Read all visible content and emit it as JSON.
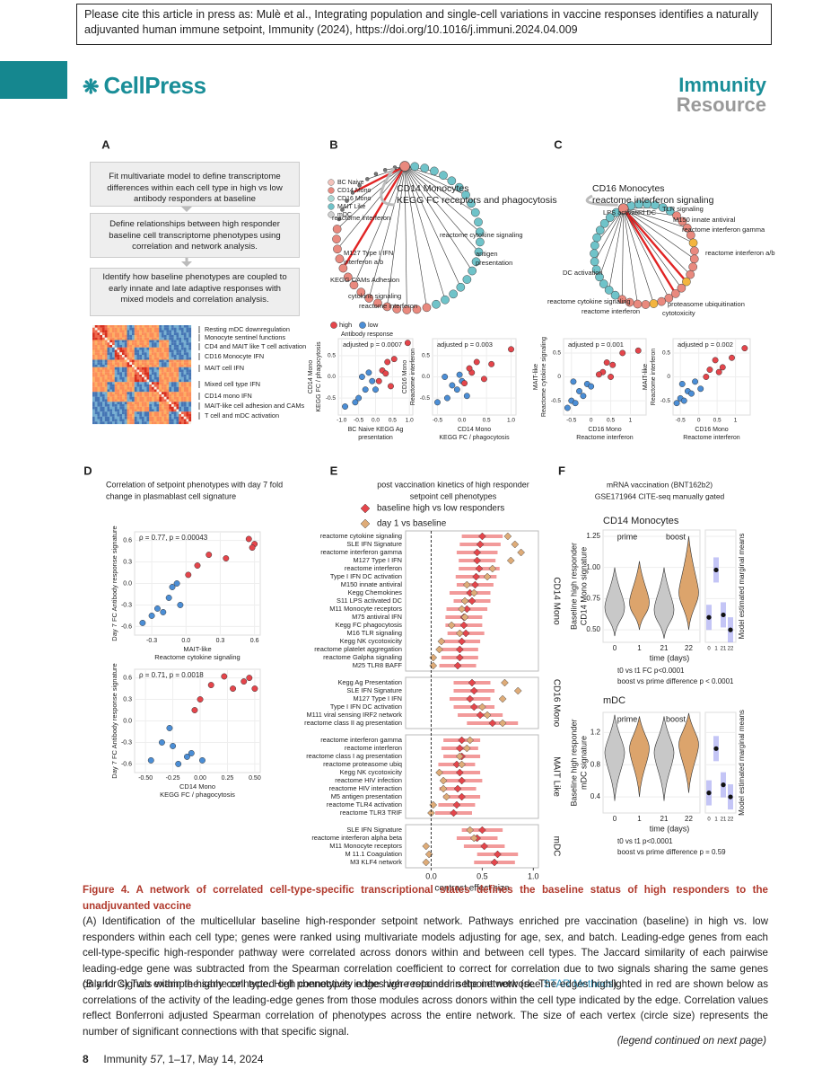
{
  "header": {
    "citation": "Please cite this article in press as: Mulè et al., Integrating population and single-cell variations in vaccine responses identifies a naturally adjuvanted human immune setpoint, Immunity (2024), https://doi.org/10.1016/j.immuni.2024.04.009",
    "publisher": "CellPress",
    "journal": "Immunity",
    "article_type": "Resource"
  },
  "panel_a": {
    "letter": "A",
    "steps": [
      "Fit multivariate model to define transcriptome differences within each cell type in high vs low antibody responders at baseline",
      "Define relationships between high responder baseline cell transcriptome phenotypes using correlation and network analysis.",
      "Identify how baseline phenotypes are coupled to early innate and late adaptive responses with mixed models and correlation analysis."
    ],
    "modules": [
      "Resting mDC downregulation",
      "Monocyte sentinel functions",
      "CD4 and MAIT like T cell activation",
      "CD16 Monocyte IFN",
      "MAIT cell IFN",
      "Mixed cell type IFN",
      "CD14 mono IFN",
      "MAIT-like cell adhesion and CAMs",
      "T cell and mDC activation"
    ]
  },
  "panel_b": {
    "letter": "B",
    "legend": [
      {
        "label": "BC Naive",
        "color": "#f3c3bb"
      },
      {
        "label": "CD14 Mono",
        "color": "#e9897e"
      },
      {
        "label": "CD16 Mono",
        "color": "#a9d8d4"
      },
      {
        "label": "MAIT Like",
        "color": "#6fc3c9"
      },
      {
        "label": "mDC",
        "color": "#cfcfcf"
      }
    ],
    "title": [
      "CD14 Monocytes",
      "KEGG FC receptors and phagocytosis"
    ],
    "labels": [
      "reactome interferon",
      "M127 Type I IFN",
      "interferon a/b",
      "KEGG CAMs Adhesion",
      "cytokine signaling",
      "reactome interferon",
      "reactome cytokine signaling",
      "antigen",
      "presentation"
    ],
    "response_legend": {
      "items": [
        {
          "label": "high",
          "color": "#e5454b"
        },
        {
          "label": "low",
          "color": "#4b8ed6"
        }
      ],
      "title": "Antibody response"
    },
    "scatters": [
      {
        "annotation": "adjusted p = 0.0007",
        "xlabel": [
          "BC Naive KEGG Ag",
          "presentation"
        ],
        "ylabel": [
          "CD14 Mono",
          "KEGG FC / phagocytosis"
        ],
        "xlim": [
          -1.1,
          1.1
        ],
        "ylim": [
          -0.9,
          0.9
        ],
        "xticks": [
          {
            "value": -1,
            "label": "-1.0"
          },
          -0.5,
          {
            "value": 0,
            "label": "0.0"
          },
          0.5,
          {
            "value": 1,
            "label": "1.0"
          }
        ],
        "yticks": [
          -0.5,
          {
            "value": 0,
            "label": "0.0"
          },
          0.5
        ],
        "high": {
          "x": [
            0.95,
            0.35,
            0.55,
            0.2,
            0.3,
            0.1,
            0.45
          ],
          "y": [
            0.8,
            0.35,
            0.42,
            0.15,
            0.08,
            -0.1,
            -0.22
          ]
        },
        "low": {
          "x": [
            -0.9,
            -0.5,
            -0.3,
            -0.1,
            -0.4,
            -0.2,
            0.0,
            -0.6
          ],
          "y": [
            -0.7,
            -0.5,
            -0.3,
            -0.1,
            0.0,
            0.1,
            -0.3,
            -0.6
          ]
        }
      },
      {
        "annotation": "adjusted p = 0.003",
        "xlabel": [
          "CD14 Mono",
          "KEGG FC / phagocytosis"
        ],
        "ylabel": [
          "CD16 Mono",
          "Reactome interferon"
        ],
        "xlim": [
          -0.6,
          1.1
        ],
        "ylim": [
          -0.9,
          0.9
        ],
        "xticks": [
          -0.5,
          {
            "value": 0,
            "label": "0.0"
          },
          0.5,
          {
            "value": 1,
            "label": "1.0"
          }
        ],
        "yticks": [
          -0.5,
          {
            "value": 0,
            "label": "0.0"
          },
          0.5
        ],
        "high": {
          "x": [
            1.0,
            0.6,
            0.3,
            0.2,
            0.45,
            0.15,
            0.05
          ],
          "y": [
            0.65,
            0.3,
            0.35,
            0.1,
            -0.05,
            0.2,
            -0.15
          ]
        },
        "low": {
          "x": [
            -0.5,
            -0.3,
            -0.2,
            -0.1,
            0.0,
            -0.35,
            0.1,
            -0.05
          ],
          "y": [
            -0.6,
            -0.5,
            -0.2,
            -0.3,
            -0.1,
            0.0,
            -0.45,
            0.05
          ]
        }
      }
    ]
  },
  "panel_c": {
    "letter": "C",
    "title": [
      "CD16 Monocytes",
      "reactome interferon signaling"
    ],
    "labels": [
      "LPS activated DC",
      "TLR signaling",
      "M150 innate antiviral",
      "reactome interferon gamma",
      "reactome interferon a/b",
      "DC activation",
      "reactome cytokine signaling",
      "reactome interferon",
      "proteasome ubiquitination",
      "cytotoxicity"
    ],
    "scatters": [
      {
        "annotation": "adjusted p = 0.001",
        "xlabel": [
          "CD16 Mono",
          "Reactome interferon"
        ],
        "ylabel": [
          "MAIT-like",
          "Reactome cytokine signaling"
        ],
        "xlim": [
          -0.7,
          1.4
        ],
        "ylim": [
          -0.8,
          0.8
        ],
        "xticks": [
          -0.5,
          0,
          0.5,
          1
        ],
        "yticks": [
          -0.5,
          0,
          0.5
        ],
        "high": {
          "x": [
            1.2,
            0.8,
            0.55,
            0.4,
            0.3,
            0.2,
            0.5
          ],
          "y": [
            0.55,
            0.5,
            0.25,
            0.3,
            0.1,
            0.05,
            0.0
          ]
        },
        "low": {
          "x": [
            -0.6,
            -0.5,
            -0.4,
            -0.3,
            -0.2,
            -0.1,
            0.0,
            -0.45
          ],
          "y": [
            -0.65,
            -0.5,
            -0.55,
            -0.3,
            -0.4,
            -0.15,
            -0.2,
            -0.1
          ]
        }
      },
      {
        "annotation": "adjusted p = 0.002",
        "xlabel": [
          "CD16 Mono",
          "Reactome interferon"
        ],
        "ylabel": [
          "MAIT-like",
          "Reactome interferon"
        ],
        "xlim": [
          -0.7,
          1.4
        ],
        "ylim": [
          -0.8,
          0.8
        ],
        "xticks": [
          -0.5,
          0,
          0.5,
          1
        ],
        "yticks": [
          -0.5,
          0,
          0.5
        ],
        "high": {
          "x": [
            1.25,
            0.9,
            0.65,
            0.45,
            0.3,
            0.55,
            0.2
          ],
          "y": [
            0.6,
            0.4,
            0.2,
            0.35,
            0.15,
            0.1,
            0.0
          ]
        },
        "low": {
          "x": [
            -0.6,
            -0.5,
            -0.4,
            -0.3,
            -0.2,
            -0.1,
            0.05,
            -0.45
          ],
          "y": [
            -0.55,
            -0.45,
            -0.5,
            -0.3,
            -0.35,
            -0.1,
            -0.25,
            -0.15
          ]
        }
      }
    ]
  },
  "panel_d": {
    "letter": "D",
    "title": [
      "Correlation of setpoint phenotypes with day 7 fold",
      "change in plasmablast cell signature"
    ],
    "ylabel": "Day 7 FC Antibody response signature",
    "scatters": [
      {
        "annotation": "ρ = 0.77, p = 0.00043",
        "xlabel": [
          "MAIT-like",
          "Reactome cytokine signaling"
        ],
        "xlim": [
          -0.45,
          0.65
        ],
        "ylim": [
          -0.72,
          0.72
        ],
        "xticks": [
          -0.3,
          {
            "value": 0,
            "label": "0.0"
          },
          0.3,
          0.6
        ],
        "yticks": [
          -0.6,
          -0.3,
          {
            "value": 0,
            "label": "0.0"
          },
          0.3,
          0.6
        ],
        "high": {
          "x": [
            0.55,
            0.6,
            0.58,
            0.35,
            0.2,
            0.1,
            0.02
          ],
          "y": [
            0.62,
            0.55,
            0.5,
            0.35,
            0.4,
            0.25,
            0.12
          ]
        },
        "low": {
          "x": [
            -0.38,
            -0.3,
            -0.25,
            -0.2,
            -0.15,
            -0.12,
            -0.08,
            -0.05
          ],
          "y": [
            -0.55,
            -0.45,
            -0.35,
            -0.4,
            -0.2,
            -0.05,
            0.0,
            -0.3
          ]
        }
      },
      {
        "annotation": "ρ = 0.71, p = 0.0018",
        "xlabel": [
          "CD14 Mono",
          "KEGG FC / phagocytosis"
        ],
        "xlim": [
          -0.6,
          0.55
        ],
        "ylim": [
          -0.72,
          0.72
        ],
        "xticks": [
          {
            "value": -0.5,
            "label": "-0.50"
          },
          -0.25,
          {
            "value": 0,
            "label": "0.00"
          },
          0.25,
          {
            "value": 0.5,
            "label": "0.50"
          }
        ],
        "yticks": [
          -0.6,
          -0.3,
          {
            "value": 0,
            "label": "0.0"
          },
          0.3,
          0.6
        ],
        "high": {
          "x": [
            0.45,
            0.5,
            0.4,
            0.22,
            0.1,
            0.0,
            -0.05,
            0.3
          ],
          "y": [
            0.6,
            0.45,
            0.55,
            0.62,
            0.5,
            0.3,
            0.15,
            0.45
          ]
        },
        "low": {
          "x": [
            -0.45,
            -0.35,
            -0.28,
            -0.25,
            -0.2,
            -0.12,
            -0.08,
            0.02
          ],
          "y": [
            -0.55,
            -0.3,
            -0.1,
            -0.35,
            -0.6,
            -0.5,
            -0.45,
            -0.55
          ]
        }
      }
    ]
  },
  "panel_e": {
    "letter": "E",
    "title": [
      "post vaccination kinetics of high responder",
      "setpoint cell phenotypes"
    ],
    "xlabel": "contrast effect size",
    "xlim": [
      -0.25,
      1.05
    ],
    "xticks": [
      {
        "value": 0,
        "label": "0.0"
      },
      0.5,
      {
        "value": 1,
        "label": "1.0"
      }
    ],
    "series": [
      {
        "name": "baseline high vs low responders",
        "color": "#e5454b"
      },
      {
        "name": "day 1 vs baseline",
        "color": "#dfac78"
      }
    ],
    "groups": [
      {
        "name": "CD14 Mono",
        "rows": [
          "reactome cytokine signaling",
          "SLE IFN Signature",
          "reactome interferon gamma",
          "M127 Type I IFN",
          "reactome interferon",
          "Type I IFN DC activation",
          "M150 innate antiviral",
          "Kegg Chemokines",
          "S11 LPS activated DC",
          "M11 Monocyte receptors",
          "M75 antiviral IFN",
          "Kegg FC phagocytosis",
          "M16 TLR signaling",
          "Kegg NK cycotoxicity",
          "reactome platelet aggregation",
          "reactome Galpha signaling",
          "M25 TLR8 BAFF"
        ],
        "baseline": [
          0.5,
          0.48,
          0.45,
          0.45,
          0.47,
          0.44,
          0.43,
          0.38,
          0.4,
          0.35,
          0.32,
          0.32,
          0.34,
          0.3,
          0.28,
          0.28,
          0.26
        ],
        "err": [
          0.2,
          0.2,
          0.2,
          0.18,
          0.2,
          0.2,
          0.18,
          0.2,
          0.18,
          0.2,
          0.18,
          0.18,
          0.18,
          0.18,
          0.18,
          0.18,
          0.18
        ],
        "day1": [
          0.75,
          0.82,
          0.88,
          0.78,
          0.6,
          0.55,
          0.35,
          0.42,
          0.33,
          0.3,
          0.33,
          0.2,
          0.28,
          0.1,
          0.08,
          0.02,
          0.02
        ]
      },
      {
        "name": "CD16 Mono",
        "rows": [
          "Kegg Ag Presentation",
          "SLE IFN Signature",
          "M127 Type I IFN",
          "Type I IFN DC activation",
          "M111 viral sensing IRF2 network",
          "reactome class II ag presentation"
        ],
        "baseline": [
          0.4,
          0.42,
          0.38,
          0.42,
          0.48,
          0.6
        ],
        "err": [
          0.18,
          0.2,
          0.2,
          0.2,
          0.22,
          0.25
        ],
        "day1": [
          0.72,
          0.85,
          0.7,
          0.5,
          0.55,
          0.7
        ]
      },
      {
        "name": "MAIT Like",
        "rows": [
          "reactome interferon gamma",
          "reactome interferon",
          "reactome class I ag presentation",
          "reactome proteasome ubiq",
          "Kegg NK cycotoxicity",
          "reactome HIV infection",
          "reactome HIV interaction",
          "M5 antigen presentation",
          "reactome TLR4 activation",
          "reactome TLR3 TRIF"
        ],
        "baseline": [
          0.3,
          0.28,
          0.3,
          0.25,
          0.28,
          0.3,
          0.26,
          0.3,
          0.25,
          0.22
        ],
        "err": [
          0.18,
          0.18,
          0.18,
          0.18,
          0.2,
          0.2,
          0.18,
          0.18,
          0.18,
          0.18
        ],
        "day1": [
          0.38,
          0.35,
          0.28,
          0.3,
          0.08,
          0.12,
          0.12,
          0.15,
          0.02,
          0.0
        ]
      },
      {
        "name": "mDC",
        "rows": [
          "SLE IFN Signature",
          "reactome interferon alpha beta",
          "M11 Monocyte receptors",
          "M 11.1 Coagulation",
          "M3 KLF4 network"
        ],
        "baseline": [
          0.5,
          0.45,
          0.52,
          0.65,
          0.62
        ],
        "err": [
          0.2,
          0.2,
          0.2,
          0.2,
          0.2
        ],
        "day1": [
          0.38,
          0.42,
          -0.05,
          -0.02,
          -0.05
        ]
      }
    ]
  },
  "panel_f": {
    "letter": "F",
    "title": [
      "mRNA vaccination (BNT162b2)",
      "GSE171964 CITE-seq manually gated"
    ],
    "phases": [
      "prime",
      "boost"
    ],
    "xlabel": "time (days)",
    "side_label": "Model estimated marginal means",
    "categories": [
      "0",
      "1",
      "21",
      "22"
    ],
    "colors": [
      "#c8c8c8",
      "#dca46c",
      "#c8c8c8",
      "#dca46c"
    ],
    "panels": [
      {
        "title": "CD14 Monocytes",
        "ylabel": [
          "Baseline high responder",
          "CD14 Mono signature"
        ],
        "ylim": [
          0.4,
          1.3
        ],
        "yticks": [
          {
            "value": 0.5,
            "label": "0.50"
          },
          0.75,
          {
            "value": 1,
            "label": "1.00"
          },
          1.25
        ],
        "min": [
          0.45,
          0.5,
          0.43,
          0.5
        ],
        "median": [
          0.68,
          0.72,
          0.66,
          0.8
        ],
        "max": [
          1.0,
          1.05,
          1.0,
          1.25
        ],
        "means": [
          0.6,
          0.98,
          0.62,
          0.5
        ],
        "notes": [
          "t0 vs t1 FC p<0.0001",
          "boost vs prime difference p < 0.0001"
        ]
      },
      {
        "title": "mDC",
        "ylabel": [
          "Baseline high responder",
          "mDC signature"
        ],
        "ylim": [
          0.2,
          1.45
        ],
        "yticks": [
          0.4,
          0.8,
          1.2
        ],
        "min": [
          0.35,
          0.4,
          0.35,
          0.45
        ],
        "median": [
          0.95,
          1.0,
          0.95,
          1.05
        ],
        "max": [
          1.42,
          1.4,
          1.4,
          1.44
        ],
        "means": [
          0.45,
          1.0,
          0.55,
          0.4
        ],
        "notes": [
          "t0 vs t1 p<0.0001",
          "boost vs prime difference  p = 0.59"
        ]
      }
    ]
  },
  "caption": {
    "title": "Figure 4. A network of correlated cell-type-specific transcriptional states defines the baseline status of high responders to the unadjuvanted vaccine",
    "paragraphs": [
      {
        "before": "(A) Identification of the multicellular baseline high-responder setpoint network. Pathways enriched pre vaccination (baseline) in high vs. low responders within each cell type; genes were ranked using multivariate models adjusting for age, sex, and batch. Leading-edge genes from each cell-type-specific high-responder pathway were correlated across donors within and between cell types. The Jaccard similarity of each pairwise leading-edge gene was subtracted from the Spearman correlation coefficient to correct for correlation due to two signals sharing the same genes only for signals within the same cell type. High connectivity edges were retained in the network (see ",
        "link": "STAR Methods",
        "after": ")."
      },
      "(B and C) Two example highly connected cell phenotypes in the high-responder setpoint network. The edges highlighted in red are shown below as correlations of the activity of the leading-edge genes from those modules across donors within the cell type indicated by the edge. Correlation values reflect Bonferroni adjusted Spearman correlation of phenotypes across the entire network. The size of each vertex (circle size) represents the number of significant connections with that specific signal."
    ]
  },
  "footer": {
    "page": "8",
    "journal": "Immunity",
    "volume": "57",
    "rest": ", 1–17, May 14, 2024",
    "continued": "(legend continued on next page)"
  }
}
